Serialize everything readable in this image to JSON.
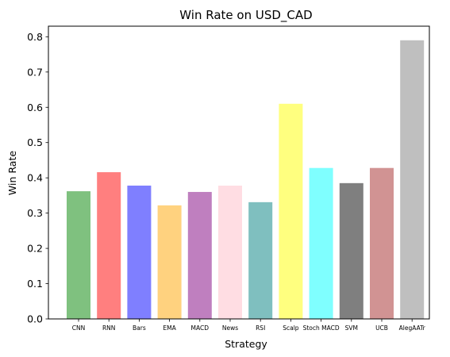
{
  "chart_data": {
    "type": "bar",
    "title": "Win Rate on USD_CAD",
    "xlabel": "Strategy",
    "ylabel": "Win Rate",
    "ylim": [
      0,
      0.83
    ],
    "yticks": [
      0.0,
      0.1,
      0.2,
      0.3,
      0.4,
      0.5,
      0.6,
      0.7,
      0.8
    ],
    "grid": false,
    "categories": [
      "CNN",
      "RNN",
      "Bars",
      "EMA",
      "MACD",
      "News",
      "RSI",
      "Scalp",
      "Stoch MACD",
      "SVM",
      "UCB",
      "AlegAATr"
    ],
    "values": [
      0.362,
      0.416,
      0.378,
      0.322,
      0.36,
      0.378,
      0.331,
      0.61,
      0.428,
      0.385,
      0.428,
      0.79
    ],
    "colors": [
      "#7fc17f",
      "#ff7f7f",
      "#7f7fff",
      "#ffd27f",
      "#bf7fbf",
      "#ffdde3",
      "#7fbfbf",
      "#ffff7f",
      "#7fffff",
      "#7f7f7f",
      "#d19393",
      "#bfbfbf"
    ]
  }
}
